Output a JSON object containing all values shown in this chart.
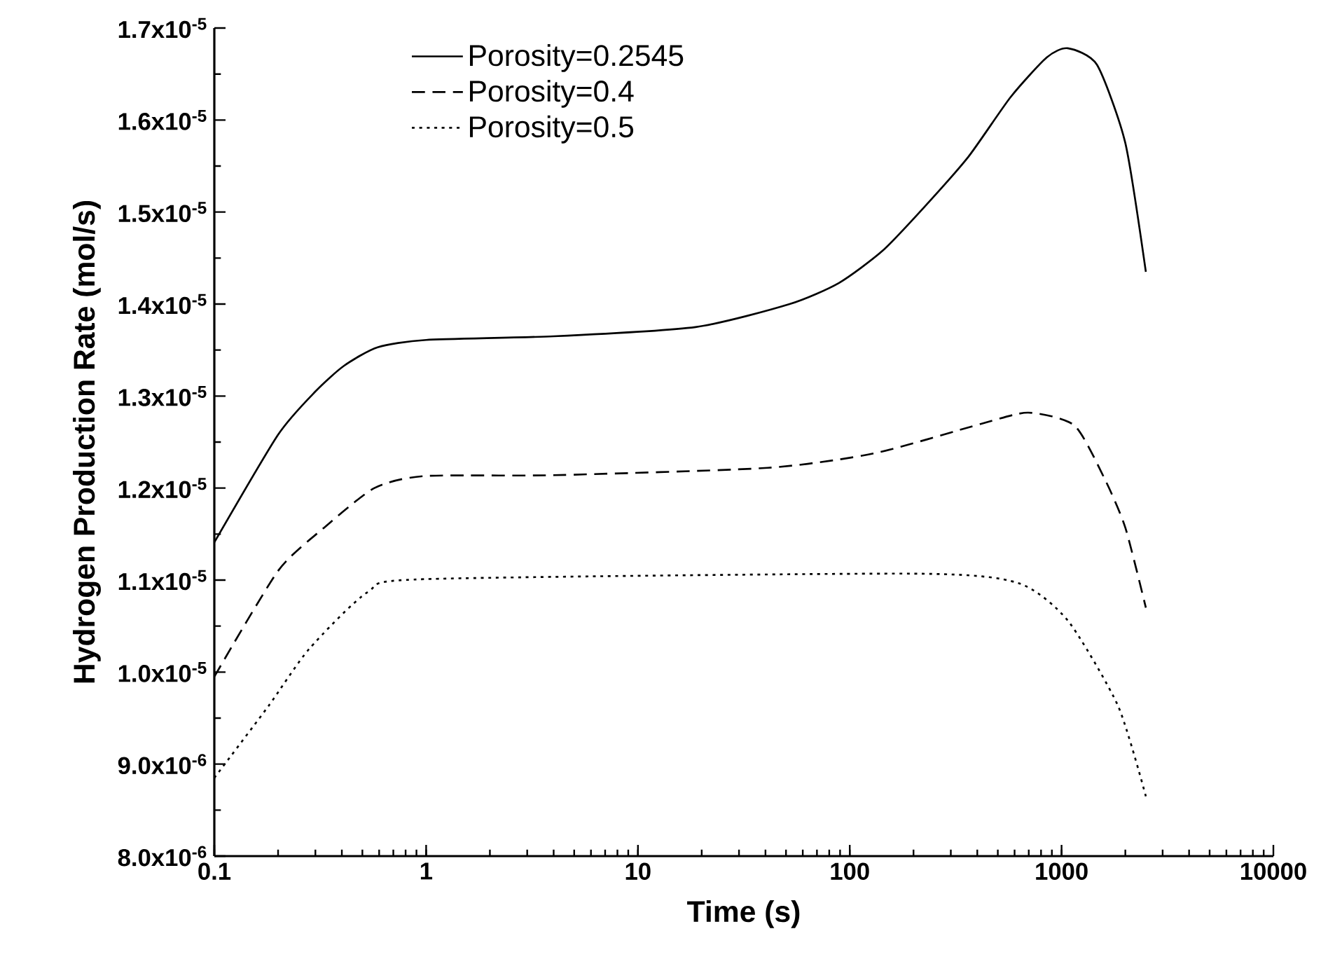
{
  "chart_data": {
    "type": "line",
    "xlabel": "Time (s)",
    "ylabel": "Hydrogen Production Rate (mol/s)",
    "log": "x",
    "legend": "top",
    "grid": false,
    "xlim": [
      0.1,
      10000
    ],
    "xticks": [
      0.1,
      1,
      10,
      100,
      1000,
      10000
    ],
    "ylim": [
      8e-06,
      1.7e-05
    ],
    "yticks": [
      {
        "value": 8e-06,
        "label": "8.0x10$^{-6}$"
      },
      {
        "value": 9e-06,
        "label": "9.0x10$^{-6}$"
      },
      {
        "value": 1e-05,
        "label": "1.0x10$^{-5}$"
      },
      {
        "value": 1.1e-05,
        "label": "1.1x10$^{-5}$"
      },
      {
        "value": 1.2e-05,
        "label": "1.2x10$^{-5}$"
      },
      {
        "value": 1.3e-05,
        "label": "1.3x10$^{-5}$"
      },
      {
        "value": 1.4e-05,
        "label": "1.4x10$^{-5}$"
      },
      {
        "value": 1.5e-05,
        "label": "1.5x10$^{-5}$"
      },
      {
        "value": 1.6e-05,
        "label": "1.6x10$^{-5}$"
      },
      {
        "value": 1.7e-05,
        "label": "1.7x10$^{-5}$"
      }
    ],
    "series": [
      {
        "name": "Porosity=0.2545",
        "color": "#000000",
        "line_style": "solid",
        "x": [
          0.1,
          0.2,
          0.3,
          0.41,
          0.59,
          1.0,
          4,
          18.7,
          52,
          89,
          143,
          224,
          363,
          575,
          851,
          1070,
          1470,
          2000,
          2500
        ],
        "values": [
          1.141e-05,
          1.258e-05,
          1.305e-05,
          1.333e-05,
          1.353e-05,
          1.361e-05,
          1.365e-05,
          1.375e-05,
          1.4e-05,
          1.423e-05,
          1.458e-05,
          1.505e-05,
          1.56e-05,
          1.625e-05,
          1.668e-05,
          1.678e-05,
          1.66e-05,
          1.575e-05,
          1.435e-05
        ]
      },
      {
        "name": "Porosity=0.4",
        "color": "#000000",
        "line_style": "dashed",
        "x": [
          0.1,
          0.2,
          0.33,
          0.57,
          0.98,
          4,
          41,
          132,
          420,
          696,
          1150,
          1590,
          2000,
          2500
        ],
        "values": [
          9.95e-06,
          1.11e-05,
          1.157e-05,
          1.2e-05,
          1.213e-05,
          1.214e-05,
          1.222e-05,
          1.238e-05,
          1.27e-05,
          1.282e-05,
          1.268e-05,
          1.211e-05,
          1.157e-05,
          1.07e-05
        ]
      },
      {
        "name": "Porosity=0.5",
        "color": "#000000",
        "line_style": "dotted",
        "x": [
          0.1,
          0.18,
          0.28,
          0.53,
          0.98,
          195,
          620,
          1070,
          1850,
          2500
        ],
        "values": [
          8.85e-06,
          9.63e-06,
          1.025e-05,
          1.087e-05,
          1.101e-05,
          1.107e-05,
          1.097e-05,
          1.056e-05,
          9.63e-06,
          8.65e-06
        ]
      }
    ]
  }
}
